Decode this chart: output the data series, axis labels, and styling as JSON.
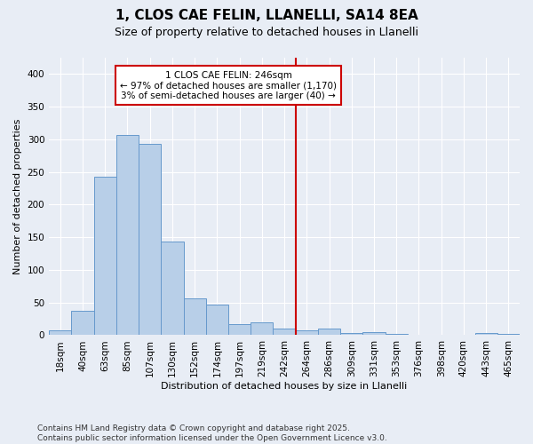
{
  "title_line1": "1, CLOS CAE FELIN, LLANELLI, SA14 8EA",
  "title_line2": "Size of property relative to detached houses in Llanelli",
  "xlabel": "Distribution of detached houses by size in Llanelli",
  "ylabel": "Number of detached properties",
  "footnote": "Contains HM Land Registry data © Crown copyright and database right 2025.\nContains public sector information licensed under the Open Government Licence v3.0.",
  "bar_labels": [
    "18sqm",
    "40sqm",
    "63sqm",
    "85sqm",
    "107sqm",
    "130sqm",
    "152sqm",
    "174sqm",
    "197sqm",
    "219sqm",
    "242sqm",
    "264sqm",
    "286sqm",
    "309sqm",
    "331sqm",
    "353sqm",
    "376sqm",
    "398sqm",
    "420sqm",
    "443sqm",
    "465sqm"
  ],
  "bar_values": [
    8,
    38,
    243,
    307,
    293,
    143,
    57,
    47,
    17,
    20,
    10,
    7,
    10,
    4,
    5,
    2,
    1,
    0,
    0,
    3,
    2
  ],
  "bar_color": "#b8cfe8",
  "bar_edge_color": "#6699cc",
  "annotation_label": "1 CLOS CAE FELIN: 246sqm\n← 97% of detached houses are smaller (1,170)\n3% of semi-detached houses are larger (40) →",
  "vline_x_index": 10.5,
  "ylim": [
    0,
    425
  ],
  "yticks": [
    0,
    50,
    100,
    150,
    200,
    250,
    300,
    350,
    400
  ],
  "background_color": "#e8edf5",
  "plot_bg_color": "#e8edf5",
  "grid_color": "#ffffff",
  "annotation_box_color": "#ffffff",
  "annotation_box_edge": "#cc0000",
  "vline_color": "#cc0000",
  "title1_fontsize": 11,
  "title2_fontsize": 9,
  "axis_label_fontsize": 8,
  "tick_fontsize": 7.5,
  "annotation_fontsize": 7.5,
  "footnote_fontsize": 6.5
}
